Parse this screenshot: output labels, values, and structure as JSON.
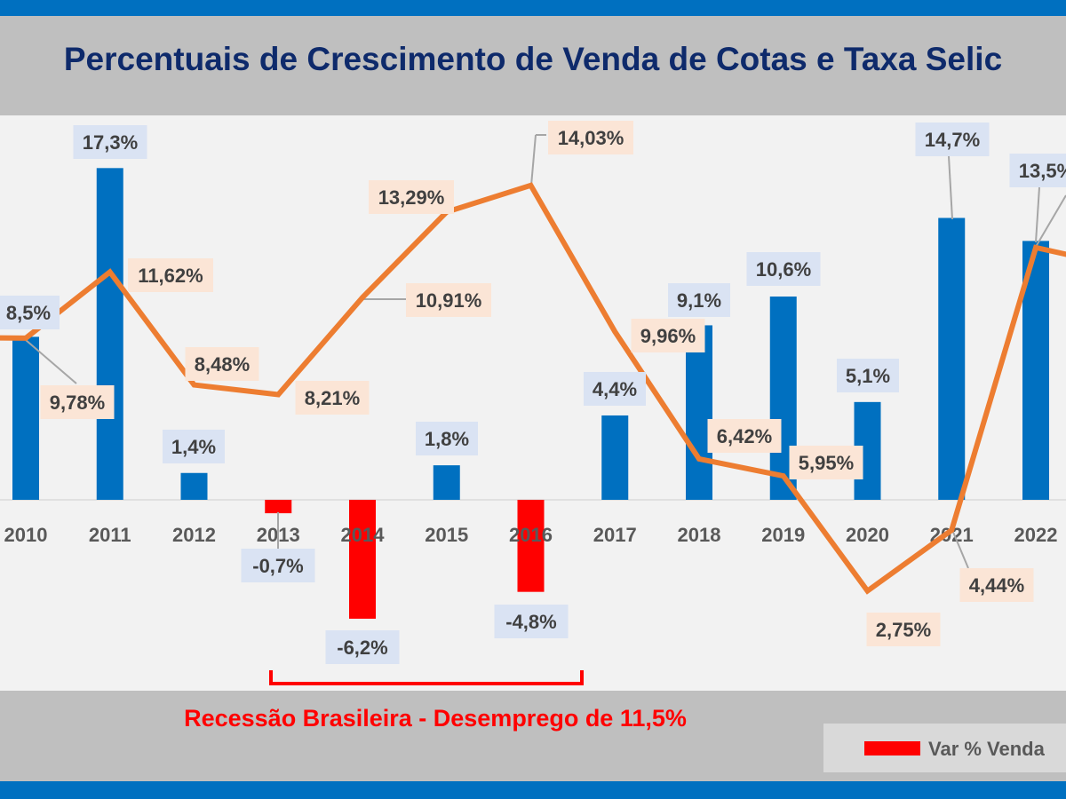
{
  "title": "Percentuais de Crescimento de Venda de Cotas e Taxa Selic",
  "annotation": "Recessão Brasileira - Desemprego de 11,5%",
  "legend": {
    "label": "Var % Venda",
    "position": "bottom-right"
  },
  "colors": {
    "positive_bar": "#0070c0",
    "negative_bar": "#ff0000",
    "line": "#ed7d31",
    "bar_label_bg": "#dae3f3",
    "line_label_bg": "#fbe5d6",
    "title": "#0e2a6b",
    "frame": "#0070c0",
    "band": "#bfbfbf"
  },
  "chart_data": {
    "type": "bar+line",
    "categories": [
      "2010",
      "2011",
      "2012",
      "2013",
      "2014",
      "2015",
      "2016",
      "2017",
      "2018",
      "2019",
      "2020",
      "2021",
      "2022"
    ],
    "series": [
      {
        "name": "Var % Venda",
        "type": "bar",
        "axis": "primary",
        "values": [
          8.5,
          17.3,
          1.4,
          -0.7,
          -6.2,
          1.8,
          -4.8,
          4.4,
          9.1,
          10.6,
          5.1,
          14.7,
          13.5
        ],
        "labels": [
          "8,5%",
          "17,3%",
          "1,4%",
          "-0,7%",
          "-6,2%",
          "1,8%",
          "-4,8%",
          "4,4%",
          "9,1%",
          "10,6%",
          "5,1%",
          "14,7%",
          "13,5%"
        ]
      },
      {
        "type": "line",
        "axis": "secondary",
        "values": [
          9.78,
          11.62,
          8.48,
          8.21,
          10.91,
          13.29,
          14.03,
          9.96,
          6.42,
          5.95,
          2.75,
          4.44,
          12.3
        ],
        "labels": [
          "9,78%",
          "11,62%",
          "8,48%",
          "8,21%",
          "10,91%",
          "13,29%",
          "14,03%",
          "9,96%",
          "6,42%",
          "5,95%",
          "2,75%",
          "4,44%",
          ""
        ]
      }
    ],
    "grid": false
  }
}
